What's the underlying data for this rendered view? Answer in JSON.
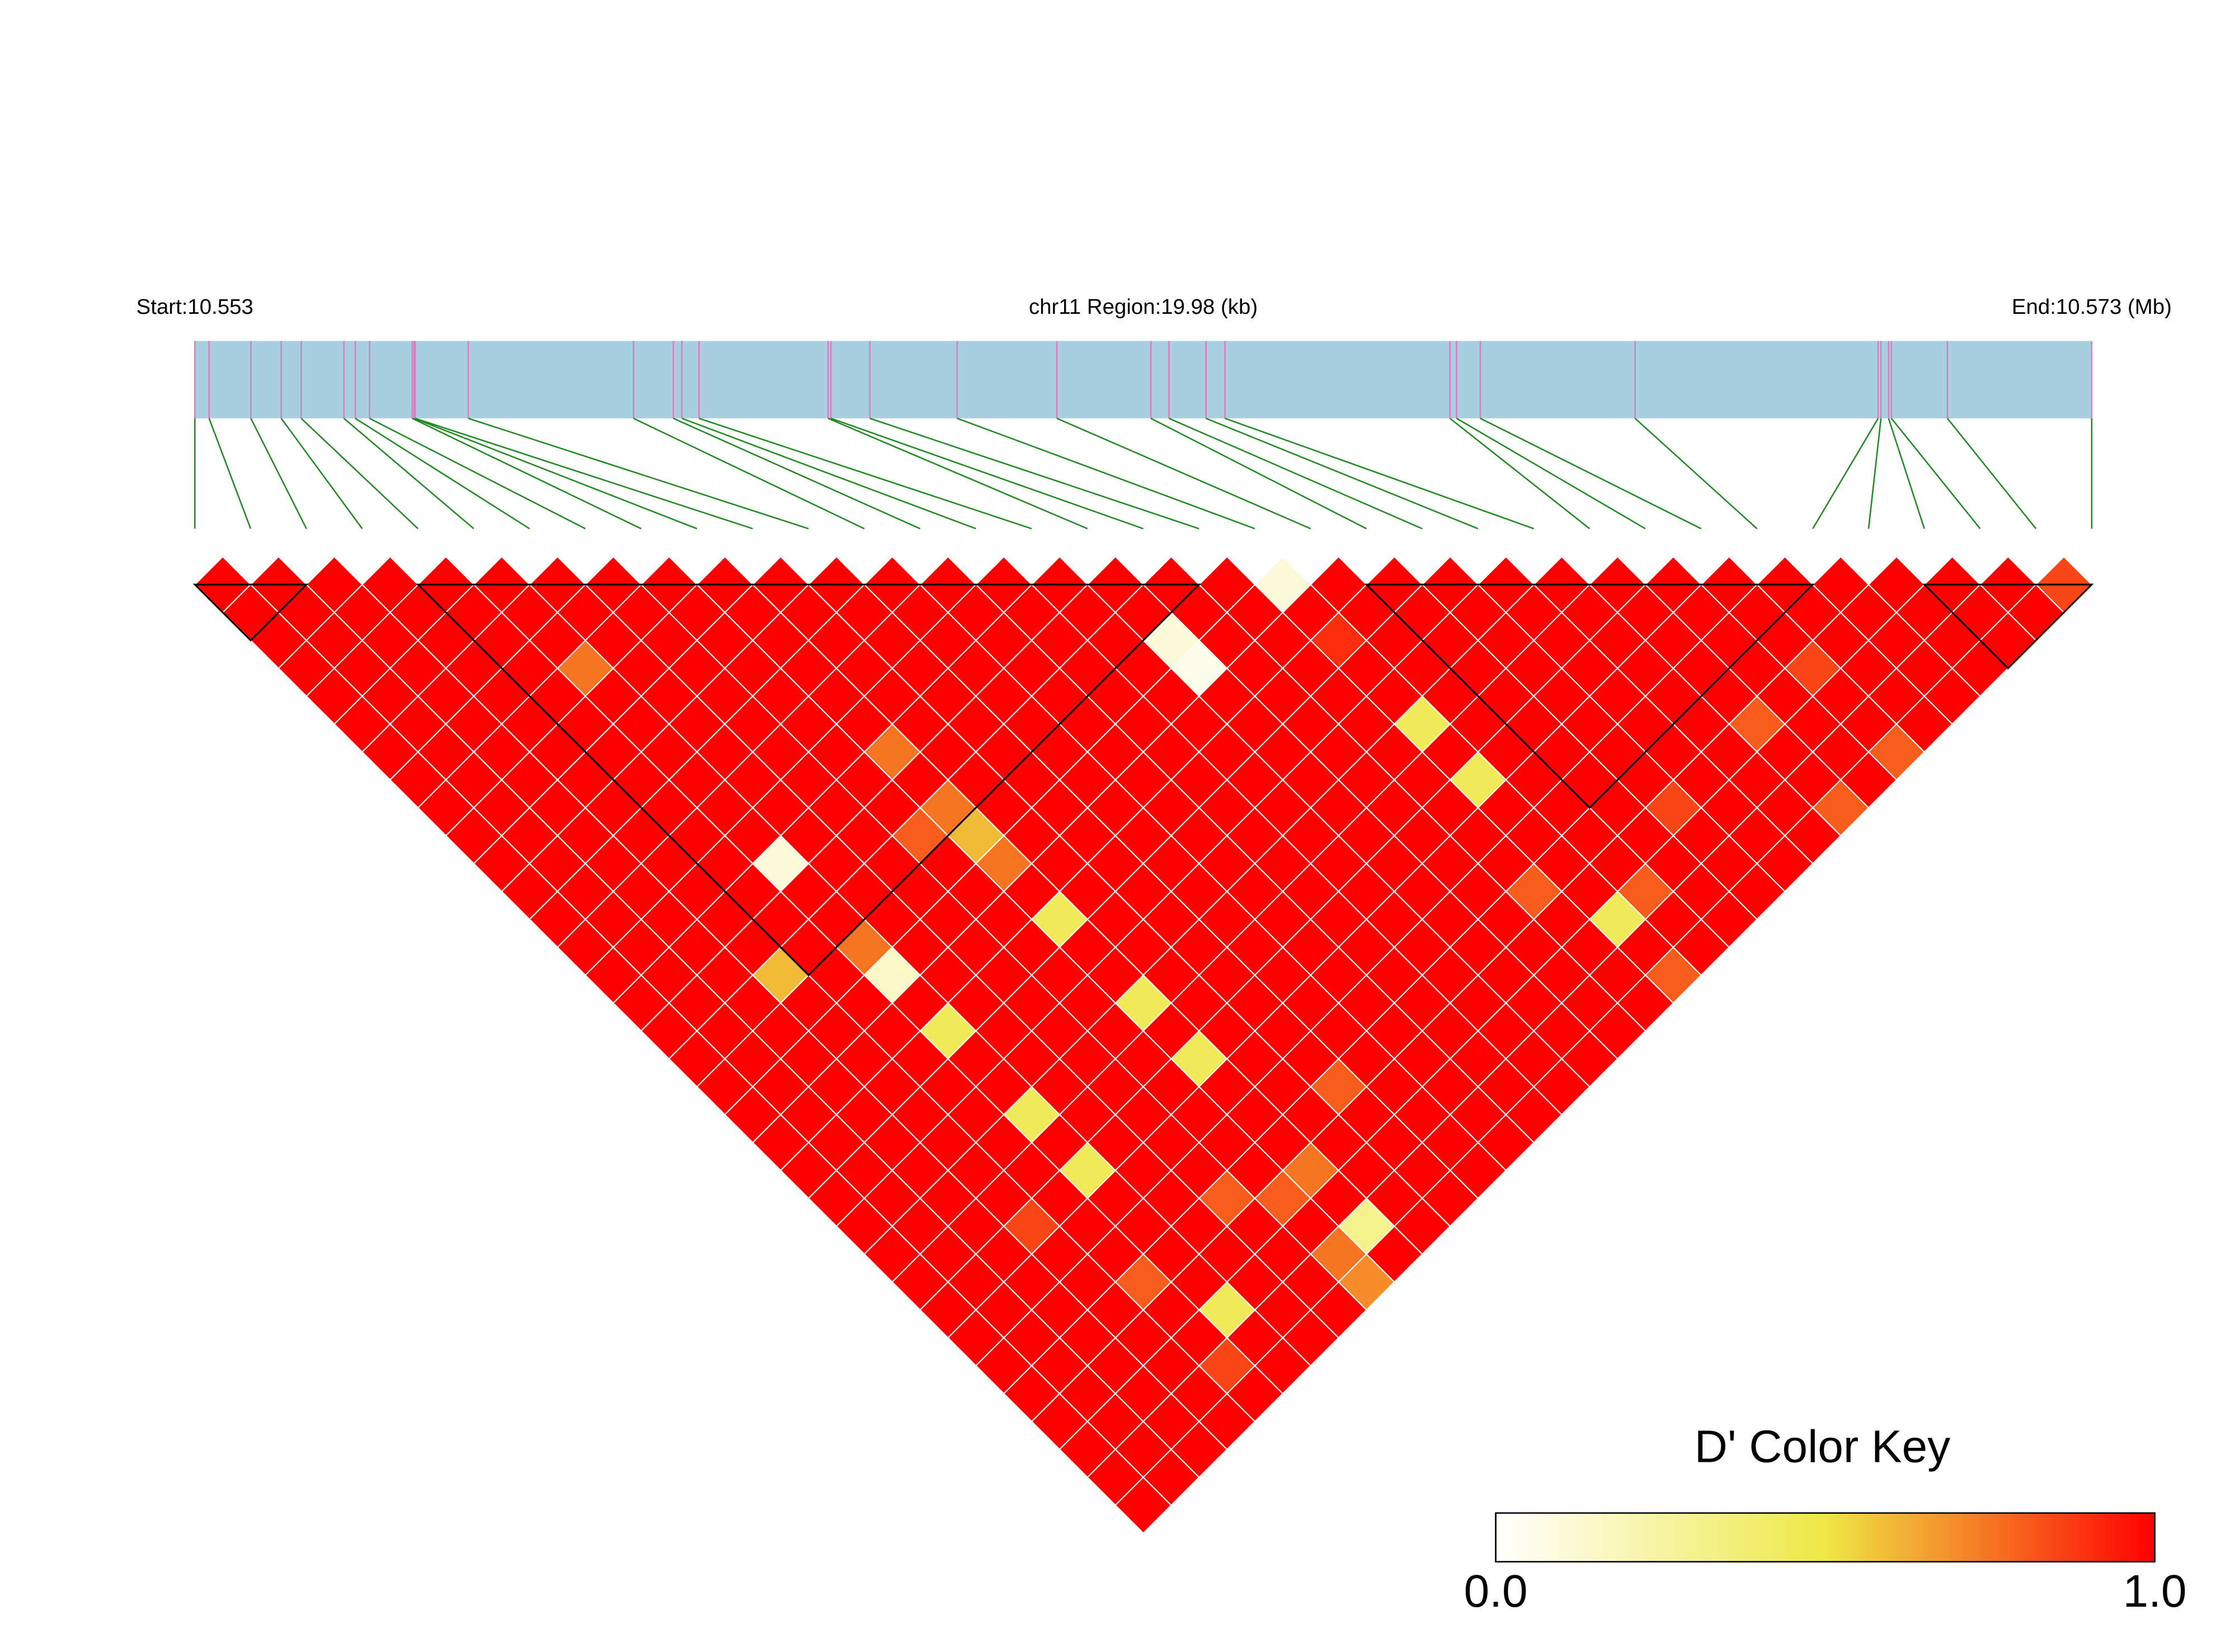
{
  "chart_data": {
    "type": "ld_heatmap",
    "start_label": "Start:10.553",
    "region_label": "chr11 Region:19.98 (kb)",
    "end_label": "End:10.573 (Mb)",
    "xlim": [
      0,
      19.98
    ],
    "snp_positions_kb": [
      0,
      0.15,
      0.59,
      0.91,
      1.12,
      1.57,
      1.69,
      1.84,
      2.29,
      2.31,
      2.32,
      2.88,
      4.62,
      5.04,
      5.13,
      5.31,
      6.67,
      6.7,
      7.11,
      8.03,
      9.08,
      10.07,
      10.26,
      10.65,
      10.85,
      13.22,
      13.29,
      13.54,
      15.17,
      17.73,
      17.76,
      17.84,
      17.87,
      18.46,
      19.98
    ],
    "dprime": [
      [
        1,
        1,
        1,
        1,
        1,
        1,
        1,
        1,
        1,
        1,
        1,
        1,
        1,
        1,
        1,
        1,
        1,
        1,
        1,
        1,
        1,
        1,
        1,
        1,
        1,
        1,
        1,
        1,
        1,
        1,
        1,
        1,
        1,
        1
      ],
      [
        1,
        1,
        1,
        1,
        1,
        1,
        1,
        1,
        1,
        1,
        1,
        1,
        1,
        1,
        1,
        1,
        1,
        1,
        1,
        1,
        1,
        1,
        1,
        1,
        1,
        1,
        1,
        1,
        1,
        1,
        1,
        1,
        1
      ],
      [
        1,
        1,
        1,
        1,
        1,
        1,
        1,
        1,
        1,
        1,
        1,
        1,
        1,
        1,
        1,
        1,
        1,
        1,
        1,
        1,
        1,
        1,
        1,
        1,
        1,
        1,
        1,
        1,
        1,
        1,
        1,
        1
      ],
      [
        1,
        1,
        1,
        1,
        1,
        1,
        1,
        1,
        1,
        1,
        1,
        1,
        1,
        1,
        0.6,
        1,
        1,
        1,
        1,
        1,
        1,
        1,
        1,
        0.85,
        1,
        1,
        1,
        1,
        1,
        1,
        1
      ],
      [
        1,
        1,
        1,
        1,
        1,
        1,
        1,
        1,
        1,
        1,
        1,
        1,
        1,
        1,
        1,
        1,
        1,
        1,
        1,
        1,
        1,
        1,
        1,
        1,
        1,
        0.8,
        1,
        1,
        0.85,
        1
      ],
      [
        1,
        1,
        1,
        0.75,
        1,
        1,
        1,
        1,
        1,
        1,
        0.1,
        1,
        1,
        0.75,
        0.15,
        1,
        0.45,
        1,
        1,
        0.45,
        1,
        0.45,
        1,
        1,
        1,
        1,
        0.45,
        1,
        1
      ],
      [
        1,
        1,
        1,
        1,
        1,
        1,
        1,
        1,
        1,
        1,
        1,
        1,
        1,
        1,
        1,
        1,
        1,
        1,
        1,
        1,
        1,
        1,
        1,
        1,
        1,
        1,
        1,
        1
      ],
      [
        1,
        1,
        1,
        1,
        1,
        1,
        1,
        1,
        1,
        1,
        1,
        1,
        1,
        1,
        1,
        1,
        1,
        1,
        1,
        1,
        1,
        1,
        0.8,
        1,
        1,
        1,
        1
      ],
      [
        1,
        1,
        1,
        1,
        1,
        1,
        1,
        1,
        1,
        0.8,
        1,
        1,
        1,
        1,
        1,
        1,
        1,
        1,
        1,
        1,
        1,
        1,
        0.8,
        1,
        0.75,
        0.7
      ],
      [
        1,
        1,
        1,
        1,
        1,
        1,
        0.75,
        1,
        0.75,
        0.6,
        0.75,
        1,
        0.45,
        1,
        1,
        0.45,
        1,
        0.45,
        1,
        1,
        1,
        0.75,
        1,
        0.3,
        1
      ],
      [
        1,
        1,
        1,
        1,
        1,
        1,
        1,
        1,
        1,
        1,
        1,
        1,
        1,
        1,
        1,
        1,
        1,
        1,
        1,
        1,
        1,
        1,
        1,
        1
      ],
      [
        1,
        1,
        1,
        1,
        1,
        1,
        1,
        1,
        1,
        1,
        1,
        1,
        1,
        1,
        1,
        1,
        1,
        1,
        0.8,
        1,
        1,
        1,
        1
      ],
      [
        1,
        1,
        1,
        1,
        1,
        1,
        1,
        1,
        1,
        1,
        1,
        1,
        1,
        1,
        1,
        1,
        1,
        1,
        1,
        1,
        1,
        1
      ],
      [
        1,
        1,
        1,
        1,
        1,
        1,
        1,
        1,
        1,
        1,
        1,
        1,
        1,
        1,
        1,
        1,
        1,
        1,
        1,
        1,
        1
      ],
      [
        1,
        1,
        1,
        1,
        1,
        1,
        1,
        1,
        1,
        1,
        1,
        1,
        1,
        1,
        1,
        1,
        1,
        1,
        1,
        1
      ],
      [
        1,
        1,
        1,
        1,
        1,
        1,
        1,
        1,
        1,
        1,
        1,
        1,
        1,
        1,
        1,
        1,
        1,
        1,
        1
      ],
      [
        1,
        1,
        0.1,
        0.05,
        1,
        1,
        1,
        1,
        1,
        1,
        1,
        1,
        1,
        1,
        1,
        1,
        1,
        1
      ],
      [
        1,
        1,
        1,
        1,
        1,
        1,
        1,
        1,
        1,
        1,
        1,
        1,
        1,
        1,
        1,
        1,
        1
      ],
      [
        1,
        1,
        1,
        1,
        1,
        1,
        1,
        1,
        1,
        1,
        1,
        0.8,
        1,
        1,
        1,
        1
      ],
      [
        0.1,
        1,
        0.9,
        1,
        1,
        0.45,
        1,
        0.45,
        1,
        1,
        1,
        1,
        0.45,
        1,
        0.8
      ],
      [
        1,
        1,
        1,
        1,
        1,
        1,
        1,
        1,
        1,
        1,
        1,
        0.8,
        1,
        1
      ],
      [
        1,
        1,
        1,
        1,
        1,
        1,
        1,
        1,
        1,
        1,
        1,
        1,
        1
      ],
      [
        1,
        1,
        1,
        1,
        1,
        1,
        1,
        1,
        0.85,
        1,
        1,
        1
      ],
      [
        1,
        1,
        1,
        1,
        1,
        1,
        1,
        1,
        1,
        1,
        1
      ],
      [
        1,
        1,
        1,
        1,
        1,
        1,
        1,
        1,
        1,
        1
      ],
      [
        1,
        1,
        1,
        1,
        1,
        0.8,
        1,
        1,
        0.8
      ],
      [
        1,
        1,
        1,
        1,
        1,
        1,
        1,
        1
      ],
      [
        1,
        1,
        1,
        0.85,
        1,
        1,
        0.8
      ],
      [
        1,
        1,
        1,
        1,
        1,
        1
      ],
      [
        1,
        1,
        1,
        1,
        1
      ],
      [
        1,
        1,
        1,
        1
      ],
      [
        1,
        1,
        1
      ],
      [
        1,
        1
      ],
      [
        0.85
      ]
    ],
    "blocks": [
      [
        0,
        2
      ],
      [
        4,
        18
      ],
      [
        21,
        29
      ],
      [
        31,
        34
      ]
    ],
    "colors": {
      "low": "#ffffff",
      "mid": "#eee845",
      "high": "#ff0000"
    },
    "legend_title": "D' Color Key",
    "clim": [
      0,
      1
    ],
    "legend_ticks": [
      {
        "value": 0,
        "label": "0.0"
      },
      {
        "value": 1,
        "label": "1.0"
      }
    ]
  }
}
